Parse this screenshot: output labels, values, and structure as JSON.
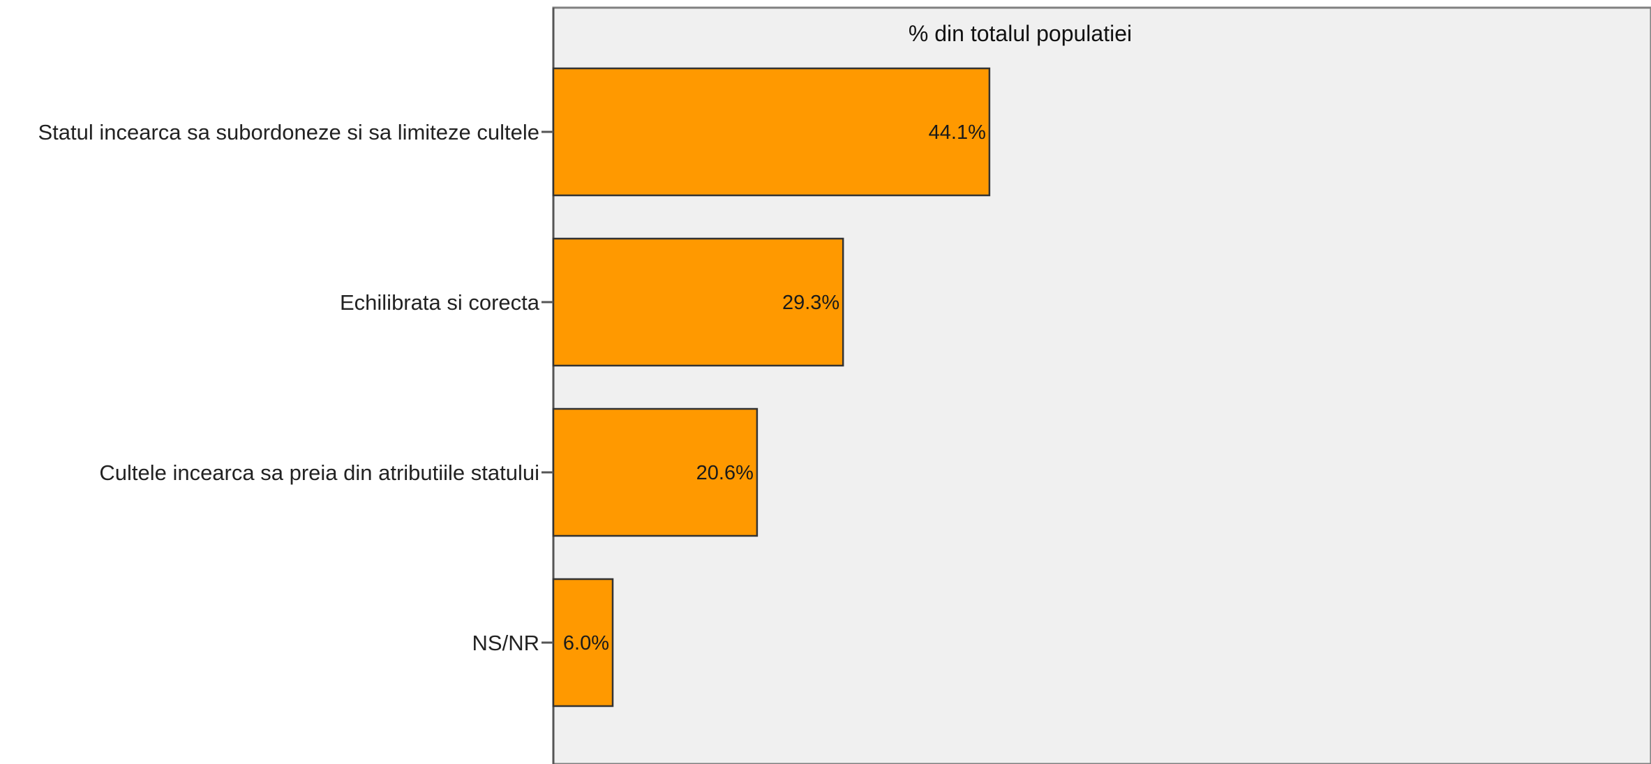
{
  "chart_data": {
    "type": "bar",
    "orientation": "horizontal",
    "title": "% din totalul populatiei",
    "categories": [
      "Statul incearca sa subordoneze si sa limiteze cultele",
      "Echilibrata si corecta",
      "Cultele incearca sa preia din atributiile statului",
      "NS/NR"
    ],
    "values": [
      44.1,
      29.3,
      20.6,
      6.0
    ],
    "value_labels": [
      "44.1%",
      "29.3%",
      "20.6%",
      "6.0%"
    ],
    "xlim": [
      0,
      110
    ],
    "grid": false,
    "legend": "none",
    "colors": {
      "bar_fill": "#FF9900",
      "bar_stroke": "#333333",
      "plot_background": "#F0F0F0",
      "axis": "#555555"
    }
  }
}
